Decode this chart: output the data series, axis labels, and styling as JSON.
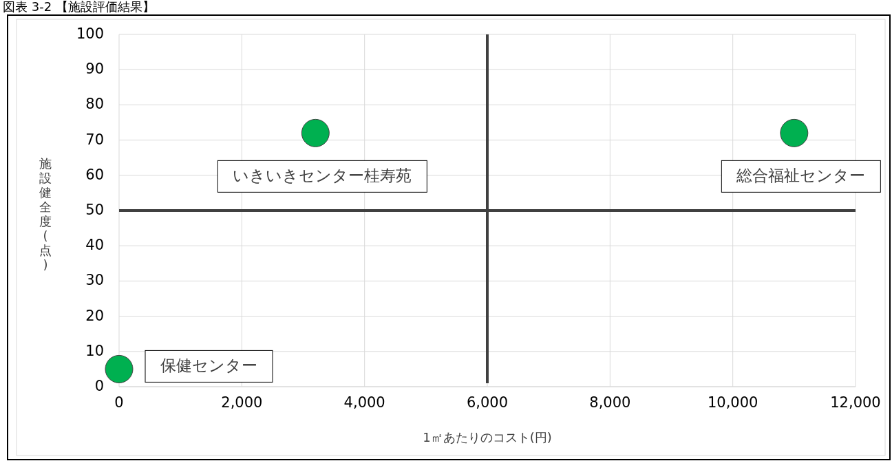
{
  "chart_data": {
    "type": "scatter",
    "title": "図表 3-2 【施設評価結果】",
    "xlabel": "1㎡あたりのコスト(円)",
    "ylabel": "施設健全度(点)",
    "marker": "circle",
    "series": [
      {
        "color": "#00b050",
        "x": [
          3200,
          11000,
          0
        ],
        "values": [
          72,
          72,
          5
        ]
      },
      {
        "type": "line",
        "color": "#404040",
        "marker": "none",
        "x": [
          6000,
          6000
        ],
        "values": [
          100,
          1
        ]
      },
      {
        "type": "line",
        "color": "#404040",
        "marker": "none",
        "x": [
          0,
          12000
        ],
        "values": [
          50,
          50
        ]
      }
    ],
    "xlim": [
      0,
      12000
    ],
    "ylim": [
      0,
      100
    ],
    "xticks": [
      {
        "value": 0,
        "label": "0"
      },
      {
        "value": 2000,
        "label": "2,000"
      },
      {
        "value": 4000,
        "label": "4,000"
      },
      {
        "value": 6000,
        "label": "6,000"
      },
      {
        "value": 8000,
        "label": "8,000"
      },
      {
        "value": 10000,
        "label": "10,000"
      },
      {
        "value": 12000,
        "label": "12,000"
      }
    ],
    "yticks": [
      0,
      10,
      20,
      30,
      40,
      50,
      60,
      70,
      80,
      90,
      100
    ],
    "grid": true,
    "annotations": [
      {
        "text": "いきいきセンター桂寿苑",
        "x": 3200,
        "y": 72
      },
      {
        "text": "総合福祉センター",
        "x": 11000,
        "y": 72
      },
      {
        "text": "保健センター",
        "x": 0,
        "y": 5
      }
    ]
  }
}
